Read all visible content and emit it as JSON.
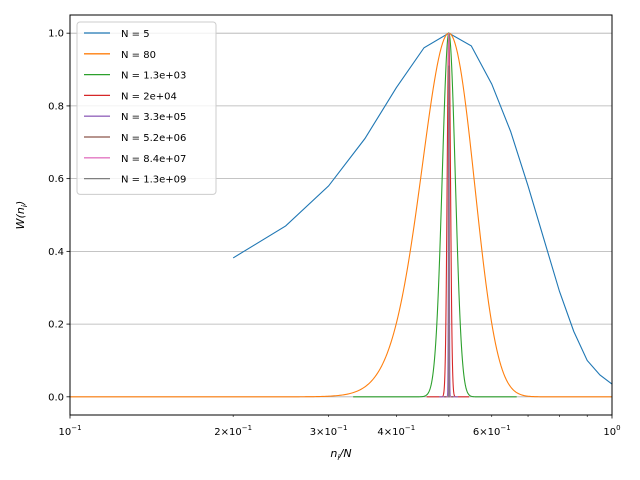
{
  "chart_data": {
    "type": "line",
    "xscale": "log",
    "xlim": [
      0.1,
      1.0
    ],
    "ylim": [
      -0.05,
      1.05
    ],
    "xlabel_base": "n",
    "xlabel_sub": "i",
    "xlabel_tail": "/N",
    "ylabel_base": "W(n",
    "ylabel_sub": "i",
    "ylabel_tail": ")",
    "grid": "horizontal",
    "legend_position": "top-left",
    "x_ticks_major": [
      {
        "value": 0.1,
        "base": "10",
        "exp": "−1",
        "mant": ""
      },
      {
        "value": 1.0,
        "base": "10",
        "exp": "0",
        "mant": ""
      }
    ],
    "x_ticks_minor_labeled": [
      {
        "value": 0.2,
        "mant": "2",
        "base": "10",
        "exp": "−1"
      },
      {
        "value": 0.3,
        "mant": "3",
        "base": "10",
        "exp": "−1"
      },
      {
        "value": 0.4,
        "mant": "4",
        "base": "10",
        "exp": "−1"
      },
      {
        "value": 0.6,
        "mant": "6",
        "base": "10",
        "exp": "−1"
      }
    ],
    "x_ticks_minor_unlabeled": [
      0.5,
      0.7,
      0.8,
      0.9
    ],
    "y_ticks": [
      {
        "value": 0.0,
        "label": "0.0"
      },
      {
        "value": 0.2,
        "label": "0.2"
      },
      {
        "value": 0.4,
        "label": "0.4"
      },
      {
        "value": 0.6,
        "label": "0.6"
      },
      {
        "value": 0.8,
        "label": "0.8"
      },
      {
        "value": 1.0,
        "label": "1.0"
      }
    ],
    "series": [
      {
        "name": "N = 5",
        "color": "#1f77b4",
        "N": 5,
        "x_start": 0.2,
        "x_end": 1.0,
        "points": [
          [
            0.2,
            0.382
          ],
          [
            0.25,
            0.47
          ],
          [
            0.3,
            0.58
          ],
          [
            0.35,
            0.71
          ],
          [
            0.4,
            0.85
          ],
          [
            0.45,
            0.96
          ],
          [
            0.5,
            1.0
          ],
          [
            0.55,
            0.965
          ],
          [
            0.6,
            0.86
          ],
          [
            0.65,
            0.73
          ],
          [
            0.7,
            0.58
          ],
          [
            0.75,
            0.43
          ],
          [
            0.8,
            0.29
          ],
          [
            0.85,
            0.18
          ],
          [
            0.9,
            0.1
          ],
          [
            0.95,
            0.06
          ],
          [
            1.0,
            0.035
          ]
        ]
      },
      {
        "name": "N = 80",
        "color": "#ff7f0e",
        "N": 80,
        "x_start": 0.1,
        "x_end": 1.0
      },
      {
        "name": "N = 1.3e+03",
        "color": "#2ca02c",
        "N": 1300,
        "x_start": 0.333,
        "x_end": 0.667
      },
      {
        "name": "N = 2e+04",
        "color": "#d62728",
        "N": 20000,
        "x_start": 0.455,
        "x_end": 0.545
      },
      {
        "name": "N = 3.3e+05",
        "color": "#9467bd",
        "N": 330000,
        "x_start": 0.48,
        "x_end": 0.52
      },
      {
        "name": "N = 5.2e+06",
        "color": "#8c564b",
        "N": 5200000,
        "x_start": 0.49,
        "x_end": 0.51
      },
      {
        "name": "N = 8.4e+07",
        "color": "#e377c2",
        "N": 84000000,
        "x_start": 0.495,
        "x_end": 0.505
      },
      {
        "name": "N = 1.3e+09",
        "color": "#7f7f7f",
        "N": 1300000000,
        "x_start": 0.497,
        "x_end": 0.503
      }
    ]
  }
}
